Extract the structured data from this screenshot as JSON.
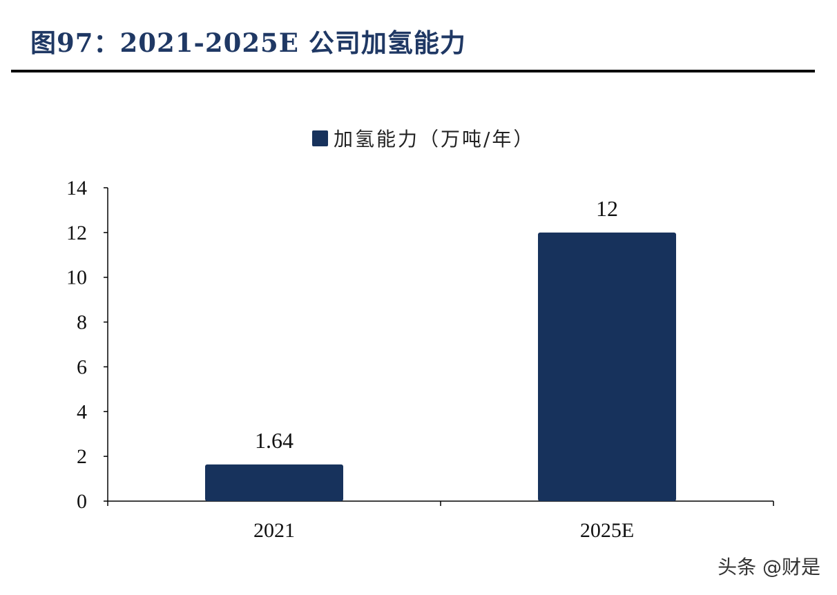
{
  "figure_title": "图97：2021-2025E 公司加氢能力",
  "watermark": "头条 @财是",
  "colors": {
    "title": "#1f3864",
    "bar": "#17325c",
    "axis": "#000000"
  },
  "chart_data": {
    "type": "bar",
    "categories": [
      "2021",
      "2025E"
    ],
    "series": [
      {
        "name": "加氢能力（万吨/年）",
        "values": [
          1.64,
          12
        ],
        "labels": [
          "1.64",
          "12"
        ]
      }
    ],
    "title": "",
    "xlabel": "",
    "ylabel": "",
    "ylim": [
      0,
      14
    ],
    "yticks": [
      0,
      2,
      4,
      6,
      8,
      10,
      12,
      14
    ],
    "grid": false,
    "legend_position": "top-center"
  }
}
